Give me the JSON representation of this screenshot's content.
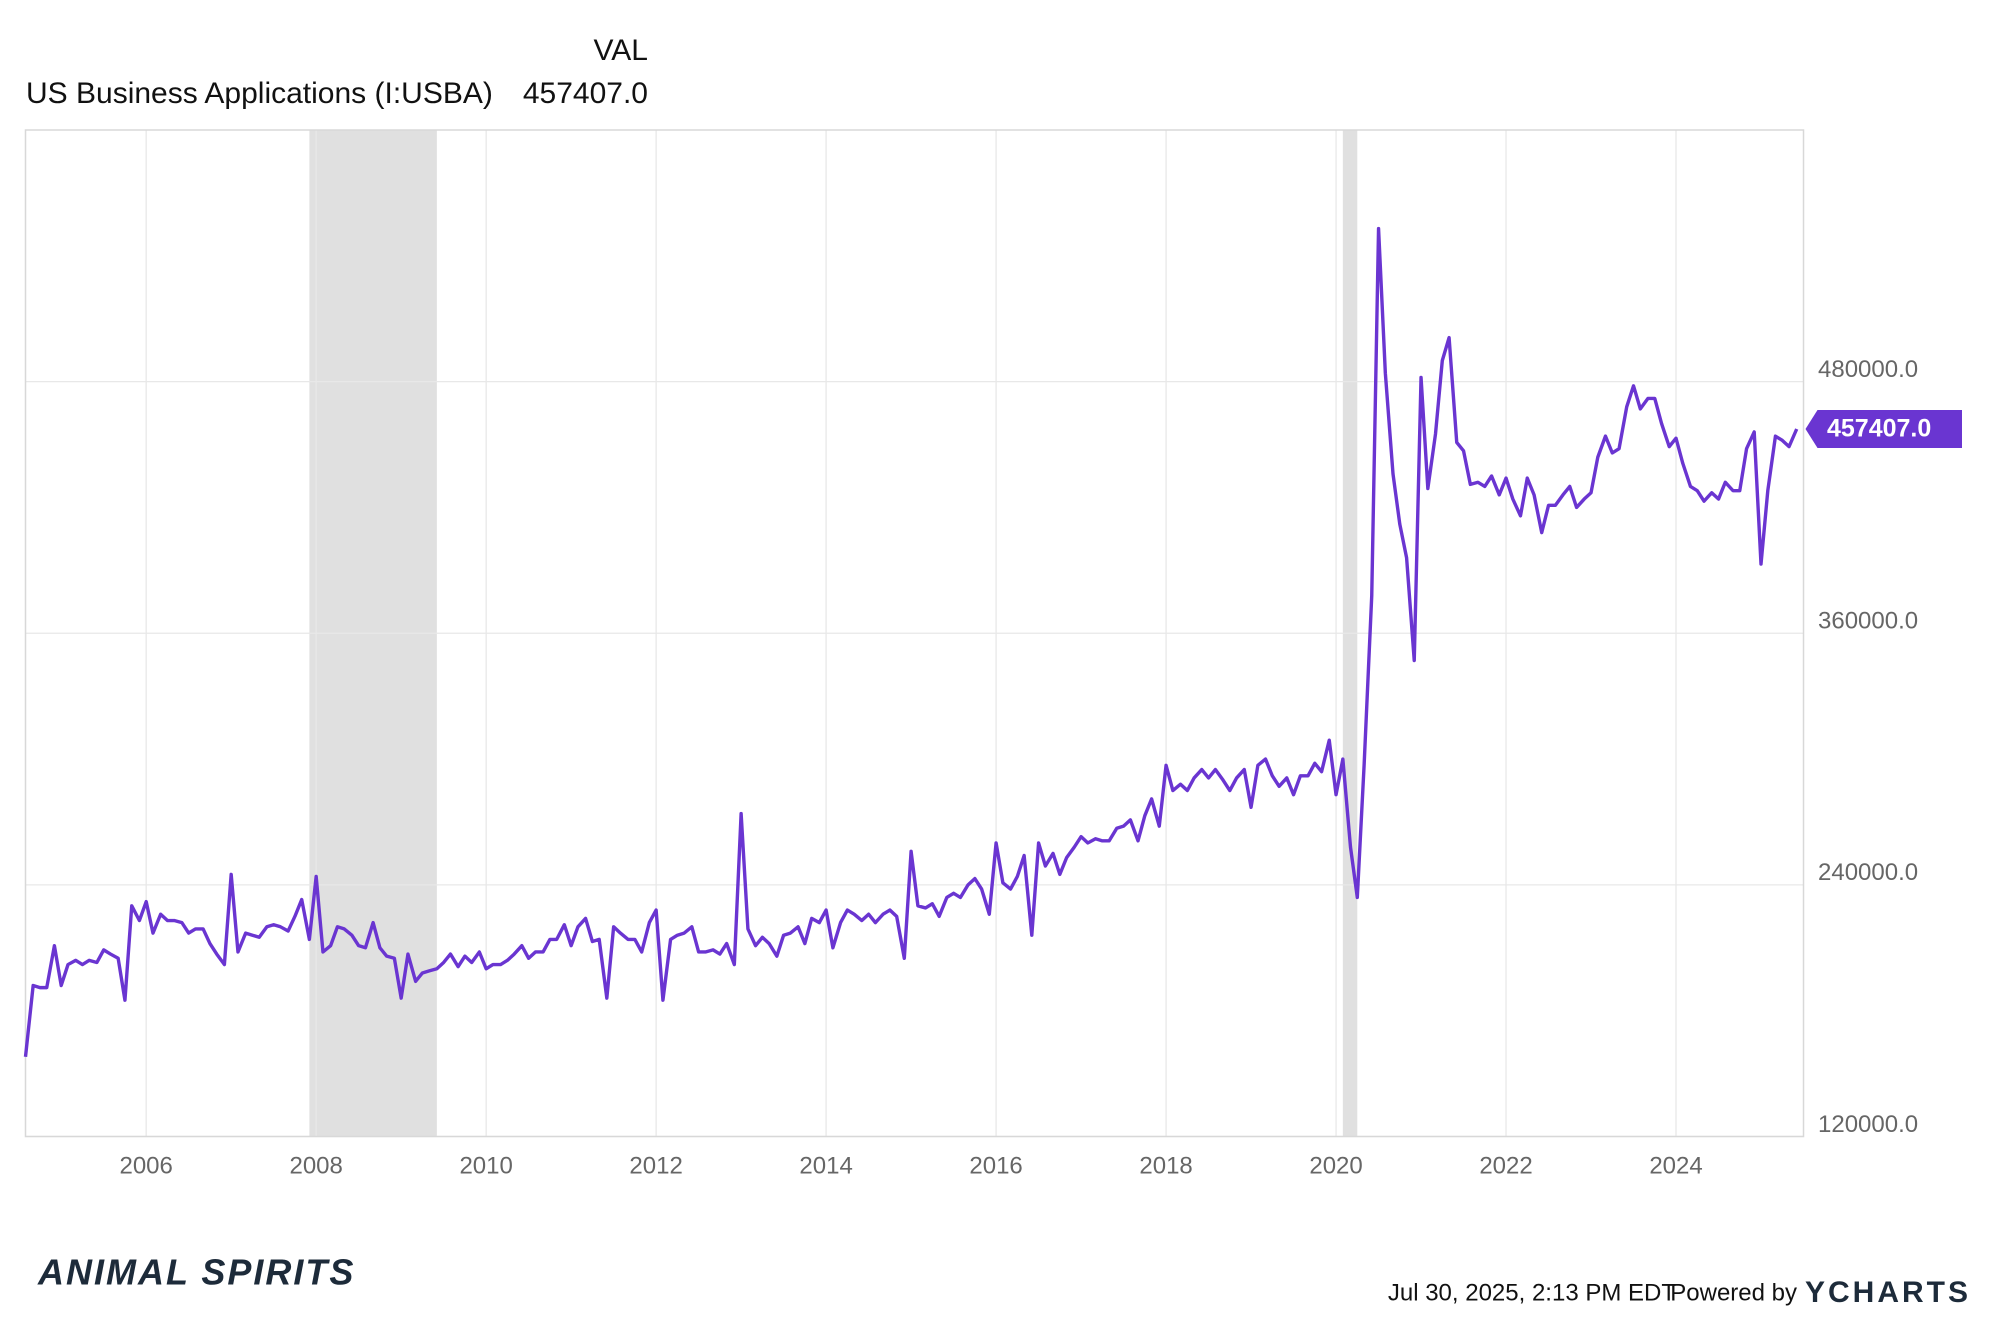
{
  "chart_data": {
    "type": "line",
    "column_header": "VAL",
    "last_value_label": "457407.0",
    "timestamp": "Jul 30, 2025, 2:13 PM EDT",
    "powered_by": "Powered by",
    "brand": "YCHARTS",
    "logo": "ANIMAL SPIRITS",
    "xlim": [
      2004.58,
      2025.5
    ],
    "xticks": [
      2006,
      2008,
      2010,
      2012,
      2014,
      2016,
      2018,
      2020,
      2022,
      2024
    ],
    "ylim": [
      120000,
      600000
    ],
    "yticks": [
      {
        "value": 120000,
        "label": "120000.0"
      },
      {
        "value": 240000,
        "label": "240000.0"
      },
      {
        "value": 360000,
        "label": "360000.0"
      },
      {
        "value": 480000,
        "label": "480000.0"
      }
    ],
    "grid": true,
    "shaded_periods": [
      [
        2007.92,
        2009.42
      ],
      [
        2020.08,
        2020.25
      ]
    ],
    "series": [
      {
        "name": "US Business Applications (I:USBA)",
        "color": "#6a35d1",
        "x": [
          2004.58,
          2004.67,
          2004.75,
          2004.83,
          2004.92,
          2005,
          2005.08,
          2005.17,
          2005.25,
          2005.33,
          2005.42,
          2005.5,
          2005.58,
          2005.67,
          2005.75,
          2005.83,
          2005.92,
          2006,
          2006.08,
          2006.17,
          2006.25,
          2006.33,
          2006.42,
          2006.5,
          2006.58,
          2006.67,
          2006.75,
          2006.83,
          2006.92,
          2007,
          2007.08,
          2007.17,
          2007.25,
          2007.33,
          2007.42,
          2007.5,
          2007.58,
          2007.67,
          2007.75,
          2007.83,
          2007.92,
          2008,
          2008.08,
          2008.17,
          2008.25,
          2008.33,
          2008.42,
          2008.5,
          2008.58,
          2008.67,
          2008.75,
          2008.83,
          2008.92,
          2009,
          2009.08,
          2009.17,
          2009.25,
          2009.33,
          2009.42,
          2009.5,
          2009.58,
          2009.67,
          2009.75,
          2009.83,
          2009.92,
          2010,
          2010.08,
          2010.17,
          2010.25,
          2010.33,
          2010.42,
          2010.5,
          2010.58,
          2010.67,
          2010.75,
          2010.83,
          2010.92,
          2011,
          2011.08,
          2011.17,
          2011.25,
          2011.33,
          2011.42,
          2011.5,
          2011.58,
          2011.67,
          2011.75,
          2011.83,
          2011.92,
          2012,
          2012.08,
          2012.17,
          2012.25,
          2012.33,
          2012.42,
          2012.5,
          2012.58,
          2012.67,
          2012.75,
          2012.83,
          2012.92,
          2013,
          2013.08,
          2013.17,
          2013.25,
          2013.33,
          2013.42,
          2013.5,
          2013.58,
          2013.67,
          2013.75,
          2013.83,
          2013.92,
          2014,
          2014.08,
          2014.17,
          2014.25,
          2014.33,
          2014.42,
          2014.5,
          2014.58,
          2014.67,
          2014.75,
          2014.83,
          2014.92,
          2015,
          2015.08,
          2015.17,
          2015.25,
          2015.33,
          2015.42,
          2015.5,
          2015.58,
          2015.67,
          2015.75,
          2015.83,
          2015.92,
          2016,
          2016.08,
          2016.17,
          2016.25,
          2016.33,
          2016.42,
          2016.5,
          2016.58,
          2016.67,
          2016.75,
          2016.83,
          2016.92,
          2017,
          2017.08,
          2017.17,
          2017.25,
          2017.33,
          2017.42,
          2017.5,
          2017.58,
          2017.67,
          2017.75,
          2017.83,
          2017.92,
          2018,
          2018.08,
          2018.17,
          2018.25,
          2018.33,
          2018.42,
          2018.5,
          2018.58,
          2018.67,
          2018.75,
          2018.83,
          2018.92,
          2019,
          2019.08,
          2019.17,
          2019.25,
          2019.33,
          2019.42,
          2019.5,
          2019.58,
          2019.67,
          2019.75,
          2019.83,
          2019.92,
          2020,
          2020.08,
          2020.17,
          2020.25,
          2020.33,
          2020.42,
          2020.5,
          2020.58,
          2020.67,
          2020.75,
          2020.83,
          2020.92,
          2021,
          2021.08,
          2021.17,
          2021.25,
          2021.33,
          2021.42,
          2021.5,
          2021.58,
          2021.67,
          2021.75,
          2021.83,
          2021.92,
          2022,
          2022.08,
          2022.17,
          2022.25,
          2022.33,
          2022.42,
          2022.5,
          2022.58,
          2022.67,
          2022.75,
          2022.83,
          2022.92,
          2023,
          2023.08,
          2023.17,
          2023.25,
          2023.33,
          2023.42,
          2023.5,
          2023.58,
          2023.67,
          2023.75,
          2023.83,
          2023.92,
          2024,
          2024.08,
          2024.17,
          2024.25,
          2024.33,
          2024.42,
          2024.5,
          2024.58,
          2024.67,
          2024.75,
          2024.83,
          2024.92,
          2025,
          2025.08,
          2025.17,
          2025.25,
          2025.33,
          2025.42
        ],
        "values": [
          158000,
          192000,
          191000,
          191000,
          211000,
          192000,
          202000,
          204000,
          202000,
          204000,
          203000,
          209000,
          207000,
          205000,
          185000,
          230000,
          223000,
          232000,
          217000,
          226000,
          223000,
          223000,
          222000,
          217000,
          219000,
          219000,
          212000,
          207000,
          202000,
          245000,
          208000,
          217000,
          216000,
          215000,
          220000,
          221000,
          220000,
          218000,
          225000,
          233000,
          214000,
          244000,
          208000,
          211000,
          220000,
          219000,
          216000,
          211000,
          210000,
          222000,
          210000,
          206000,
          205000,
          186000,
          207000,
          194000,
          198000,
          199000,
          200000,
          203000,
          207000,
          201000,
          206000,
          203000,
          208000,
          200000,
          202000,
          202000,
          204000,
          207000,
          211000,
          205000,
          208000,
          208000,
          214000,
          214000,
          221000,
          211000,
          220000,
          224000,
          213000,
          214000,
          186000,
          220000,
          217000,
          214000,
          214000,
          208000,
          222000,
          228000,
          185000,
          214000,
          216000,
          217000,
          220000,
          208000,
          208000,
          209000,
          207000,
          212000,
          202000,
          274000,
          219000,
          211000,
          215000,
          212000,
          206000,
          216000,
          217000,
          220000,
          212000,
          224000,
          222000,
          228000,
          210000,
          222000,
          228000,
          226000,
          223000,
          226000,
          222000,
          226000,
          228000,
          225000,
          205000,
          256000,
          230000,
          229000,
          231000,
          225000,
          234000,
          236000,
          234000,
          240000,
          243000,
          238000,
          226000,
          260000,
          241000,
          238000,
          244000,
          254000,
          216000,
          260000,
          249000,
          255000,
          245000,
          253000,
          258000,
          263000,
          260000,
          262000,
          261000,
          261000,
          267000,
          268000,
          271000,
          261000,
          273000,
          281000,
          268000,
          297000,
          285000,
          288000,
          285000,
          291000,
          295000,
          291000,
          295000,
          290000,
          285000,
          291000,
          295000,
          277000,
          297000,
          300000,
          292000,
          287000,
          291000,
          283000,
          292000,
          292000,
          298000,
          294000,
          309000,
          283000,
          300000,
          258000,
          234000,
          297000,
          378000,
          553000,
          484000,
          436000,
          412000,
          396000,
          347000,
          482000,
          429000,
          455000,
          490000,
          501000,
          451000,
          447000,
          431000,
          432000,
          430000,
          435000,
          426000,
          434000,
          424000,
          416000,
          434000,
          426000,
          408000,
          421000,
          421000,
          426000,
          430000,
          420000,
          424000,
          427000,
          444000,
          454000,
          446000,
          448000,
          468000,
          478000,
          467000,
          472000,
          472000,
          460000,
          449000,
          453000,
          441000,
          430000,
          428000,
          423000,
          427000,
          424000,
          432000,
          428000,
          428000,
          448000,
          456000,
          393000,
          428000,
          454000,
          452000,
          449000,
          457407
        ]
      }
    ]
  }
}
